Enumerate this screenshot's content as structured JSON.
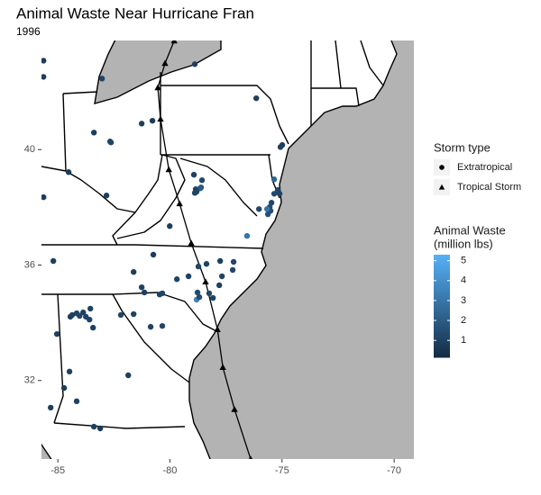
{
  "chart_data": {
    "type": "map",
    "title": "Animal Waste Near Hurricane Fran",
    "subtitle": "1996",
    "xlim": [
      -85.73,
      -69.12
    ],
    "ylim": [
      29.28,
      43.78
    ],
    "xticks": [
      -85,
      -80,
      -75,
      -70
    ],
    "yticks": [
      32,
      36,
      40
    ],
    "water_color": "#b3b3b3",
    "land_color": "#ffffff",
    "points": {
      "lon": [
        -85.64,
        -85.64,
        -83.03,
        -78.89,
        -76.15,
        -83.39,
        -82.67,
        -82.63,
        -81.26,
        -80.78,
        -74.99,
        -75.07,
        -84.52,
        -82.83,
        -78.93,
        -78.57,
        -78.85,
        -78.81,
        -78.89,
        -78.65,
        -78.61,
        -75.35,
        -75.19,
        -75.11,
        -75.35,
        -75.47,
        -75.55,
        -75.51,
        -75.67,
        -75.63,
        -76.03,
        -76.56,
        -80.01,
        -85.64,
        -85.2,
        -80.74,
        -81.62,
        -81.26,
        -79.69,
        -79.17,
        -78.73,
        -78.37,
        -77.76,
        -77.16,
        -77.2,
        -77.68,
        -77.8,
        -78.25,
        -78.08,
        -78.77,
        -78.81,
        -78.69,
        -80.46,
        -80.34,
        -81.14,
        -82.19,
        -81.62,
        -80.86,
        -80.34,
        -84.36,
        -84.16,
        -84.03,
        -83.87,
        -83.75,
        -83.55,
        -84.44,
        -83.59,
        -83.43,
        -85.04,
        -84.48,
        -81.86,
        -84.72,
        -84.16,
        -83.39,
        -83.11,
        -85.32
      ],
      "lat": [
        43.08,
        42.52,
        42.46,
        42.96,
        41.78,
        40.59,
        40.28,
        40.25,
        40.9,
        41.0,
        40.16,
        40.09,
        39.22,
        38.41,
        39.13,
        38.94,
        38.63,
        38.54,
        38.5,
        38.66,
        38.69,
        38.97,
        38.6,
        38.47,
        38.47,
        38.16,
        38.01,
        37.88,
        37.94,
        37.76,
        37.94,
        37.01,
        37.35,
        38.35,
        36.14,
        36.36,
        35.76,
        35.23,
        35.51,
        35.61,
        35.95,
        36.04,
        36.14,
        36.11,
        35.83,
        35.61,
        35.3,
        35.02,
        34.86,
        35.05,
        34.8,
        34.89,
        34.98,
        35.02,
        35.05,
        34.27,
        34.3,
        33.86,
        33.89,
        34.27,
        34.33,
        34.24,
        34.36,
        34.21,
        34.49,
        34.21,
        34.11,
        33.83,
        33.61,
        32.31,
        32.18,
        31.74,
        31.28,
        30.4,
        30.34,
        31.06
      ],
      "values": [
        0.8,
        0.9,
        1.1,
        1.0,
        0.9,
        0.9,
        1.2,
        1.1,
        0.9,
        0.8,
        0.9,
        1.0,
        0.8,
        0.9,
        1.0,
        1.3,
        1.2,
        1.0,
        1.1,
        1.6,
        2.0,
        2.4,
        1.2,
        1.1,
        1.3,
        1.2,
        1.4,
        1.5,
        3.0,
        1.6,
        1.2,
        3.0,
        0.9,
        0.8,
        0.9,
        0.8,
        0.9,
        1.0,
        1.1,
        1.0,
        1.2,
        1.1,
        1.0,
        1.2,
        1.3,
        1.1,
        1.0,
        1.2,
        1.1,
        1.3,
        3.5,
        1.4,
        1.0,
        1.1,
        1.0,
        1.2,
        1.0,
        1.1,
        1.2,
        1.0,
        1.1,
        1.2,
        1.0,
        1.1,
        1.0,
        0.9,
        1.1,
        1.0,
        0.9,
        1.0,
        0.9,
        0.8,
        1.0,
        0.9,
        0.8,
        0.9
      ]
    },
    "color_scale": {
      "title": [
        "Animal Waste",
        "(million lbs)"
      ],
      "low": "#132B43",
      "high": "#56B1F7",
      "limits": [
        0.15,
        5.3
      ],
      "ticks": [
        1,
        2,
        3,
        4,
        5
      ]
    },
    "track": {
      "title": "Storm type",
      "color": "#000000",
      "series": [
        {
          "name": "Extratropical",
          "marker": "circle",
          "lon": [],
          "lat": []
        },
        {
          "name": "Tropical Storm",
          "marker": "triangle",
          "lon": [
            -76.4,
            -77.12,
            -77.64,
            -77.88,
            -78.41,
            -79.05,
            -79.57,
            -80.05,
            -80.42,
            -80.54,
            -80.22,
            -79.81
          ],
          "lat": [
            29.28,
            31.0,
            32.46,
            33.77,
            35.42,
            36.76,
            38.13,
            39.31,
            41.06,
            42.15,
            42.99,
            43.77
          ]
        }
      ]
    }
  }
}
